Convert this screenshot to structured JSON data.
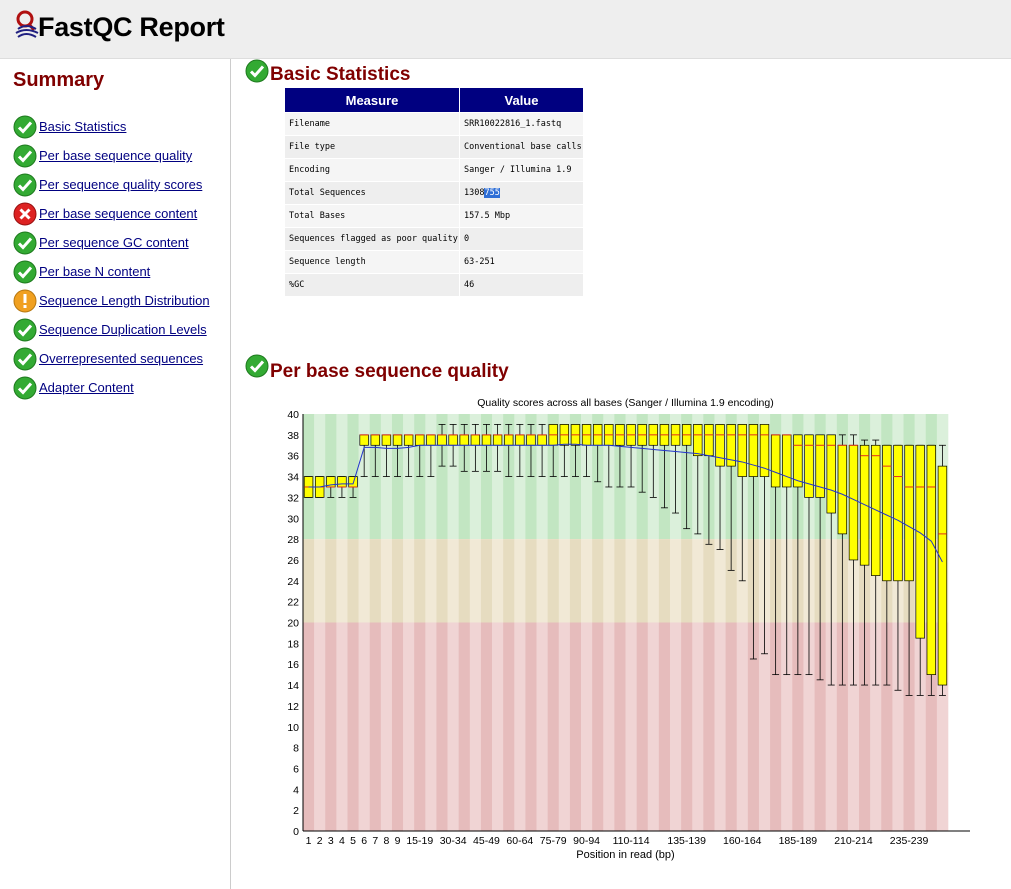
{
  "header": {
    "title": "FastQC Report"
  },
  "summary": {
    "title": "Summary",
    "items": [
      {
        "label": "Basic Statistics",
        "status": "pass"
      },
      {
        "label": "Per base sequence quality",
        "status": "pass"
      },
      {
        "label": "Per sequence quality scores",
        "status": "pass"
      },
      {
        "label": "Per base sequence content",
        "status": "fail"
      },
      {
        "label": "Per sequence GC content",
        "status": "pass"
      },
      {
        "label": "Per base N content",
        "status": "pass"
      },
      {
        "label": "Sequence Length Distribution",
        "status": "warn"
      },
      {
        "label": "Sequence Duplication Levels",
        "status": "pass"
      },
      {
        "label": "Overrepresented sequences",
        "status": "pass"
      },
      {
        "label": "Adapter Content",
        "status": "pass"
      }
    ]
  },
  "basic_statistics": {
    "title": "Basic Statistics",
    "headers": [
      "Measure",
      "Value"
    ],
    "rows": [
      {
        "measure": "Filename",
        "value": "SRR10022816_1.fastq"
      },
      {
        "measure": "File type",
        "value": "Conventional base calls"
      },
      {
        "measure": "Encoding",
        "value": "Sanger / Illumina 1.9"
      },
      {
        "measure": "Total Sequences",
        "value": "1308755"
      },
      {
        "measure": "Total Bases",
        "value": "157.5 Mbp"
      },
      {
        "measure": "Sequences flagged as poor quality",
        "value": "0"
      },
      {
        "measure": "Sequence length",
        "value": "63-251"
      },
      {
        "measure": "%GC",
        "value": "46"
      }
    ]
  },
  "per_base_quality": {
    "title": "Per base sequence quality"
  },
  "colors": {
    "pass": "#33aa33",
    "fail": "#dd2222",
    "warn": "#f0a020",
    "accent": "#000080",
    "heading": "#800000"
  },
  "chart_data": {
    "type": "box",
    "title": "Quality scores across all bases (Sanger / Illumina 1.9 encoding)",
    "xlabel": "Position in read (bp)",
    "ylabel": "",
    "ylim": [
      0,
      40
    ],
    "yticks": [
      0,
      2,
      4,
      6,
      8,
      10,
      12,
      14,
      16,
      18,
      20,
      22,
      24,
      26,
      28,
      30,
      32,
      34,
      36,
      38,
      40
    ],
    "bands": [
      {
        "from": 28,
        "to": 40,
        "color": "green"
      },
      {
        "from": 20,
        "to": 28,
        "color": "orange"
      },
      {
        "from": 0,
        "to": 20,
        "color": "red"
      }
    ],
    "categories": [
      "1",
      "2",
      "3",
      "4",
      "5",
      "6",
      "7",
      "8",
      "9",
      "10-14",
      "15-19",
      "20-24",
      "25-29",
      "30-34",
      "35-39",
      "40-44",
      "45-49",
      "50-54",
      "55-59",
      "60-64",
      "65-69",
      "70-74",
      "75-79",
      "80-84",
      "85-89",
      "90-94",
      "95-99",
      "100-104",
      "105-109",
      "110-114",
      "115-119",
      "120-124",
      "125-129",
      "130-134",
      "135-139",
      "140-144",
      "145-149",
      "150-154",
      "155-159",
      "160-164",
      "165-169",
      "170-174",
      "175-179",
      "180-184",
      "185-189",
      "190-194",
      "195-199",
      "200-204",
      "205-209",
      "210-214",
      "215-219",
      "220-224",
      "225-229",
      "230-234",
      "235-239",
      "240-244",
      "245-249",
      "250-251"
    ],
    "tick_labels": [
      "1",
      "2",
      "3",
      "4",
      "5",
      "6",
      "7",
      "8",
      "9",
      "15-19",
      "30-34",
      "45-49",
      "60-64",
      "75-79",
      "90-94",
      "110-114",
      "135-139",
      "160-164",
      "185-189",
      "210-214",
      "235-239"
    ],
    "series": [
      {
        "name": "median",
        "values": [
          33,
          33,
          33,
          33,
          33,
          38,
          38,
          38,
          38,
          38,
          38,
          38,
          38,
          38,
          38,
          38,
          38,
          38,
          38,
          38,
          38,
          38,
          38,
          38,
          38,
          38,
          38,
          38,
          38,
          38,
          38,
          38,
          38,
          38,
          38,
          38,
          38,
          38,
          38,
          38,
          38,
          38,
          38,
          38,
          37,
          37,
          37,
          37,
          37,
          37,
          36,
          36,
          35,
          34,
          33,
          33,
          33,
          28.5
        ]
      },
      {
        "name": "q1",
        "values": [
          32,
          32,
          33,
          33,
          33,
          37,
          37,
          37,
          37,
          37,
          37,
          37,
          37,
          37,
          37,
          37,
          37,
          37,
          37,
          37,
          37,
          37,
          37,
          37,
          37,
          37,
          37,
          37,
          37,
          37,
          37,
          37,
          37,
          37,
          37,
          36,
          36,
          35,
          35,
          34,
          34,
          34,
          33,
          33,
          33,
          32,
          32,
          30.5,
          28.5,
          26,
          25.5,
          24.5,
          24,
          24,
          24,
          18.5,
          15,
          14
        ]
      },
      {
        "name": "q3",
        "values": [
          34,
          34,
          34,
          34,
          34,
          38,
          38,
          38,
          38,
          38,
          38,
          38,
          38,
          38,
          38,
          38,
          38,
          38,
          38,
          38,
          38,
          38,
          39,
          39,
          39,
          39,
          39,
          39,
          39,
          39,
          39,
          39,
          39,
          39,
          39,
          39,
          39,
          39,
          39,
          39,
          39,
          39,
          38,
          38,
          38,
          38,
          38,
          38,
          37,
          37,
          37,
          37,
          37,
          37,
          37,
          37,
          37,
          35
        ]
      },
      {
        "name": "lower_whisker",
        "values": [
          32,
          32,
          32,
          32,
          32,
          34,
          34,
          34,
          34,
          34,
          34,
          34,
          35,
          35,
          34.5,
          34.5,
          34.5,
          34.5,
          34,
          34,
          34,
          34,
          34,
          34,
          34,
          34,
          33.5,
          33,
          33,
          33,
          32.5,
          32,
          31,
          30.5,
          29,
          28.5,
          27.5,
          27,
          25,
          24,
          16.5,
          17,
          15,
          15,
          15,
          15,
          14.5,
          14,
          14,
          14,
          14,
          14,
          14,
          13.5,
          13,
          13,
          13,
          13
        ]
      },
      {
        "name": "upper_whisker",
        "values": [
          34,
          34,
          34,
          34,
          34,
          38,
          38,
          38,
          38,
          38,
          38,
          38,
          39,
          39,
          39,
          39,
          39,
          39,
          39,
          39,
          39,
          39,
          39,
          39,
          39,
          39,
          39,
          39,
          39,
          39,
          39,
          39,
          39,
          39,
          39,
          39,
          39,
          39,
          39,
          39,
          39,
          38.5,
          38,
          38,
          38,
          38,
          38,
          38,
          38,
          38,
          37.5,
          37.5,
          37,
          37,
          37,
          37,
          37,
          37
        ]
      },
      {
        "name": "mean",
        "values": [
          33,
          33,
          33.2,
          33.3,
          33.3,
          36.8,
          36.8,
          36.7,
          36.7,
          36.8,
          37,
          37,
          37,
          37,
          37,
          37,
          37,
          37,
          37,
          37,
          37,
          37,
          37,
          37.1,
          37.1,
          37,
          37,
          37,
          36.9,
          36.8,
          36.7,
          36.6,
          36.5,
          36.4,
          36.3,
          36.2,
          36,
          35.8,
          35.6,
          35.4,
          35.1,
          34.8,
          34.4,
          34,
          33.6,
          33.3,
          33,
          32.7,
          32.3,
          31.8,
          31.3,
          30.8,
          30.3,
          29.8,
          29.2,
          28.6,
          27.8,
          25.8
        ]
      }
    ]
  }
}
